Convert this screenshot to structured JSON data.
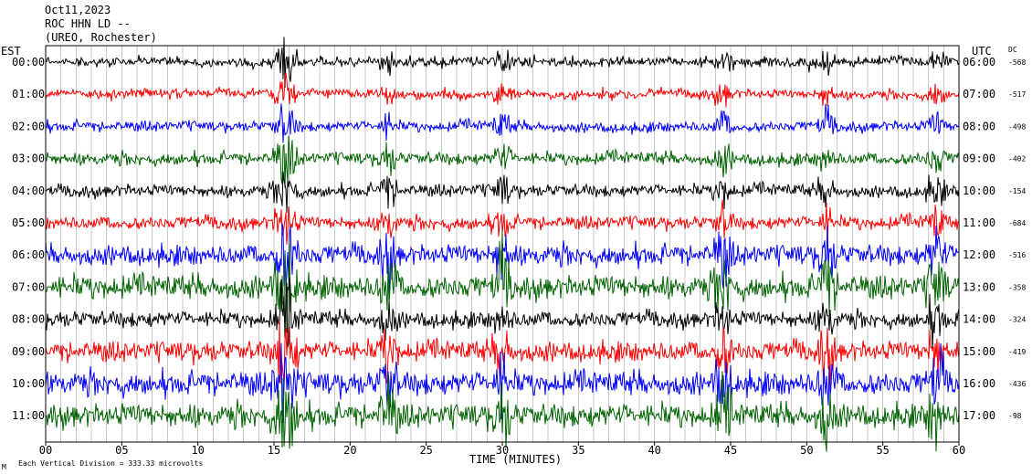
{
  "header": {
    "date": "Oct11,2023",
    "station": "ROC HHN LD --",
    "location": "(UREO, Rochester)"
  },
  "footer": {
    "note": "Each Vertical Division = 333.33 microvolts",
    "corner_mark": "M"
  },
  "colors": {
    "cycle": [
      "#000000",
      "#ff0000",
      "#0000ff",
      "#006400"
    ],
    "axis": "#000000",
    "grid": "#000000"
  },
  "chart_data": {
    "type": "line",
    "title": "",
    "xlabel": "TIME (MINUTES)",
    "left_axis_label": "EST",
    "right_axis_label": "UTC",
    "dc_label": "DC",
    "xlim": [
      0,
      60
    ],
    "x_ticks": [
      "00",
      "05",
      "10",
      "15",
      "20",
      "25",
      "30",
      "35",
      "40",
      "45",
      "50",
      "55",
      "60"
    ],
    "grid": "vertical minute lines every 5 minutes",
    "rows": [
      {
        "est": "00:00",
        "utc": "06:00",
        "dc": "-568",
        "color": "black",
        "amplitude": 0.9
      },
      {
        "est": "01:00",
        "utc": "07:00",
        "dc": "-517",
        "color": "red",
        "amplitude": 0.9
      },
      {
        "est": "02:00",
        "utc": "08:00",
        "dc": "-498",
        "color": "blue",
        "amplitude": 1.0
      },
      {
        "est": "03:00",
        "utc": "09:00",
        "dc": "-402",
        "color": "green",
        "amplitude": 1.2
      },
      {
        "est": "04:00",
        "utc": "10:00",
        "dc": "-154",
        "color": "black",
        "amplitude": 1.2
      },
      {
        "est": "05:00",
        "utc": "11:00",
        "dc": "-684",
        "color": "red",
        "amplitude": 1.3
      },
      {
        "est": "06:00",
        "utc": "12:00",
        "dc": "-516",
        "color": "blue",
        "amplitude": 2.0
      },
      {
        "est": "07:00",
        "utc": "13:00",
        "dc": "-358",
        "color": "green",
        "amplitude": 2.3
      },
      {
        "est": "08:00",
        "utc": "14:00",
        "dc": "-324",
        "color": "black",
        "amplitude": 1.6
      },
      {
        "est": "09:00",
        "utc": "15:00",
        "dc": "-419",
        "color": "red",
        "amplitude": 2.0
      },
      {
        "est": "10:00",
        "utc": "16:00",
        "dc": "-436",
        "color": "blue",
        "amplitude": 2.3
      },
      {
        "est": "11:00",
        "utc": "17:00",
        "dc": "-98",
        "color": "green",
        "amplitude": 2.3
      }
    ],
    "event_minutes": [
      15.5,
      16.0,
      22.5,
      30.0,
      44.5,
      51.3,
      58.5
    ]
  }
}
